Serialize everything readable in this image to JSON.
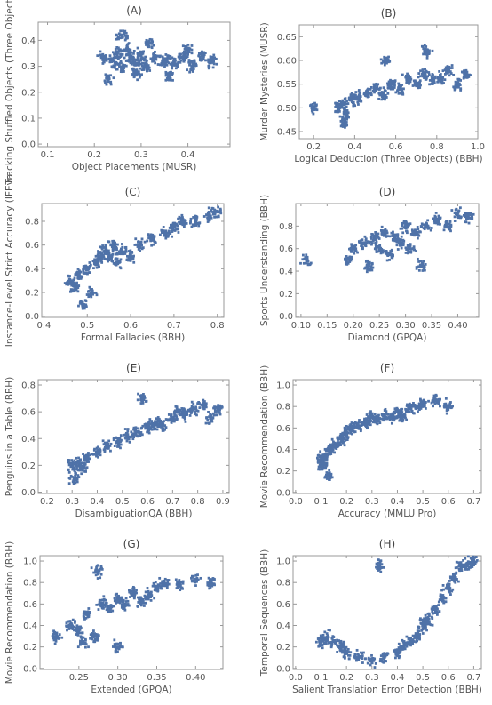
{
  "chart_data": [
    {
      "type": "scatter",
      "title": "(A)",
      "xlabel": "Object Placements (MUSR)",
      "ylabel": "Tracking Shuffled Objects (Three Objects) (",
      "xlim": [
        0.08,
        0.49
      ],
      "ylim": [
        -0.01,
        0.47
      ],
      "xticks": [
        "0.1",
        "0.2",
        "0.3",
        "0.4"
      ],
      "yticks": [
        "0.0",
        "0.1",
        "0.2",
        "0.3",
        "0.4"
      ],
      "series": [
        {
          "x": [
            0.22,
            0.24,
            0.25,
            0.26,
            0.27,
            0.28,
            0.29,
            0.3,
            0.31,
            0.33,
            0.35,
            0.37,
            0.39,
            0.41,
            0.43,
            0.45,
            0.23,
            0.26,
            0.29,
            0.32,
            0.36,
            0.4
          ],
          "y": [
            0.33,
            0.32,
            0.35,
            0.3,
            0.36,
            0.33,
            0.31,
            0.34,
            0.3,
            0.33,
            0.32,
            0.31,
            0.33,
            0.3,
            0.34,
            0.32,
            0.25,
            0.42,
            0.27,
            0.39,
            0.26,
            0.36
          ]
        }
      ]
    },
    {
      "type": "scatter",
      "title": "(B)",
      "xlabel": "Logical Deduction (Three Objects) (BBH)",
      "ylabel": "Murder Mysteries (MUSR)",
      "xlim": [
        0.13,
        1.0
      ],
      "ylim": [
        0.435,
        0.675
      ],
      "xticks": [
        "0.2",
        "0.4",
        "0.6",
        "0.8",
        "1.0"
      ],
      "yticks": [
        "0.45",
        "0.50",
        "0.55",
        "0.60",
        "0.65"
      ],
      "series": [
        {
          "x": [
            0.32,
            0.34,
            0.36,
            0.38,
            0.42,
            0.46,
            0.5,
            0.54,
            0.58,
            0.62,
            0.66,
            0.7,
            0.74,
            0.78,
            0.82,
            0.86,
            0.9,
            0.94,
            0.35,
            0.55,
            0.75,
            0.2
          ],
          "y": [
            0.5,
            0.51,
            0.49,
            0.52,
            0.52,
            0.53,
            0.54,
            0.53,
            0.55,
            0.54,
            0.56,
            0.55,
            0.57,
            0.56,
            0.56,
            0.58,
            0.55,
            0.57,
            0.47,
            0.6,
            0.62,
            0.5
          ]
        }
      ]
    },
    {
      "type": "scatter",
      "title": "(C)",
      "xlabel": "Formal Fallacies (BBH)",
      "ylabel": "Instance-Level Strict Accuracy (IFEva",
      "xlim": [
        0.395,
        0.815
      ],
      "ylim": [
        -0.01,
        0.95
      ],
      "xticks": [
        "0.4",
        "0.5",
        "0.6",
        "0.7",
        "0.8"
      ],
      "yticks": [
        "0.0",
        "0.2",
        "0.4",
        "0.6",
        "0.8"
      ],
      "series": [
        {
          "x": [
            0.46,
            0.47,
            0.48,
            0.5,
            0.52,
            0.53,
            0.54,
            0.55,
            0.56,
            0.57,
            0.58,
            0.6,
            0.62,
            0.65,
            0.68,
            0.7,
            0.72,
            0.75,
            0.78,
            0.8,
            0.49,
            0.51
          ],
          "y": [
            0.3,
            0.25,
            0.35,
            0.4,
            0.45,
            0.5,
            0.55,
            0.5,
            0.6,
            0.45,
            0.55,
            0.5,
            0.6,
            0.65,
            0.7,
            0.75,
            0.8,
            0.8,
            0.85,
            0.88,
            0.1,
            0.2
          ]
        }
      ]
    },
    {
      "type": "scatter",
      "title": "(D)",
      "xlabel": "Diamond (GPQA)",
      "ylabel": "Sports Understanding (BBH)",
      "xlim": [
        0.09,
        0.44
      ],
      "ylim": [
        -0.01,
        1.0
      ],
      "xticks": [
        "0.10",
        "0.15",
        "0.20",
        "0.25",
        "0.30",
        "0.35",
        "0.40"
      ],
      "yticks": [
        "0.0",
        "0.2",
        "0.4",
        "0.6",
        "0.8"
      ],
      "series": [
        {
          "x": [
            0.19,
            0.2,
            0.22,
            0.24,
            0.25,
            0.26,
            0.27,
            0.28,
            0.29,
            0.3,
            0.31,
            0.32,
            0.34,
            0.36,
            0.38,
            0.4,
            0.42,
            0.11,
            0.23,
            0.33
          ],
          "y": [
            0.5,
            0.6,
            0.65,
            0.7,
            0.6,
            0.75,
            0.55,
            0.7,
            0.65,
            0.8,
            0.6,
            0.75,
            0.8,
            0.85,
            0.8,
            0.9,
            0.88,
            0.5,
            0.45,
            0.45
          ]
        }
      ]
    },
    {
      "type": "scatter",
      "title": "(E)",
      "xlabel": "DisambiguationQA (BBH)",
      "ylabel": "Penguins in a Table (BBH)",
      "xlim": [
        0.165,
        0.925
      ],
      "ylim": [
        -0.01,
        0.84
      ],
      "xticks": [
        "0.2",
        "0.3",
        "0.4",
        "0.5",
        "0.6",
        "0.7",
        "0.8",
        "0.9"
      ],
      "yticks": [
        "0.0",
        "0.2",
        "0.4",
        "0.6",
        "0.8"
      ],
      "series": [
        {
          "x": [
            0.3,
            0.32,
            0.34,
            0.36,
            0.4,
            0.44,
            0.48,
            0.52,
            0.56,
            0.6,
            0.62,
            0.64,
            0.66,
            0.7,
            0.72,
            0.75,
            0.78,
            0.82,
            0.85,
            0.88,
            0.31,
            0.58
          ],
          "y": [
            0.2,
            0.22,
            0.18,
            0.25,
            0.3,
            0.35,
            0.38,
            0.42,
            0.45,
            0.48,
            0.5,
            0.52,
            0.5,
            0.55,
            0.6,
            0.58,
            0.62,
            0.65,
            0.55,
            0.62,
            0.1,
            0.7
          ]
        }
      ]
    },
    {
      "type": "scatter",
      "title": "(F)",
      "xlabel": "Accuracy (MMLU Pro)",
      "ylabel": "Movie Recommendation (BBH)",
      "xlim": [
        -0.01,
        0.73
      ],
      "ylim": [
        -0.01,
        1.05
      ],
      "xticks": [
        "0.0",
        "0.1",
        "0.2",
        "0.3",
        "0.4",
        "0.5",
        "0.6",
        "0.7"
      ],
      "yticks": [
        "0.0",
        "0.2",
        "0.4",
        "0.6",
        "0.8",
        "1.0"
      ],
      "series": [
        {
          "x": [
            0.1,
            0.11,
            0.12,
            0.14,
            0.16,
            0.18,
            0.2,
            0.22,
            0.25,
            0.28,
            0.3,
            0.32,
            0.35,
            0.38,
            0.4,
            0.42,
            0.45,
            0.48,
            0.5,
            0.55,
            0.6,
            0.13
          ],
          "y": [
            0.3,
            0.25,
            0.35,
            0.4,
            0.45,
            0.5,
            0.55,
            0.6,
            0.62,
            0.65,
            0.7,
            0.68,
            0.72,
            0.7,
            0.75,
            0.72,
            0.78,
            0.8,
            0.82,
            0.85,
            0.8,
            0.15
          ]
        }
      ]
    },
    {
      "type": "scatter",
      "title": "(G)",
      "xlabel": "Extended (GPQA)",
      "ylabel": "Movie Recommendation (BBH)",
      "xlim": [
        0.2,
        0.435
      ],
      "ylim": [
        -0.01,
        1.05
      ],
      "xticks": [
        "0.25",
        "0.30",
        "0.35",
        "0.40"
      ],
      "yticks": [
        "0.0",
        "0.2",
        "0.4",
        "0.6",
        "0.8",
        "1.0"
      ],
      "series": [
        {
          "x": [
            0.22,
            0.24,
            0.25,
            0.26,
            0.27,
            0.28,
            0.29,
            0.3,
            0.31,
            0.32,
            0.33,
            0.34,
            0.35,
            0.36,
            0.38,
            0.4,
            0.42,
            0.255,
            0.275,
            0.3
          ],
          "y": [
            0.3,
            0.4,
            0.35,
            0.5,
            0.3,
            0.6,
            0.55,
            0.65,
            0.6,
            0.7,
            0.62,
            0.68,
            0.75,
            0.8,
            0.78,
            0.82,
            0.8,
            0.25,
            0.9,
            0.2
          ]
        }
      ]
    },
    {
      "type": "scatter",
      "title": "(H)",
      "xlabel": "Salient Translation Error Detection (BBH)",
      "ylabel": "Temporal Sequences (BBH)",
      "xlim": [
        -0.01,
        0.73
      ],
      "ylim": [
        -0.01,
        1.05
      ],
      "xticks": [
        "0.0",
        "0.1",
        "0.2",
        "0.3",
        "0.4",
        "0.5",
        "0.6",
        "0.7"
      ],
      "yticks": [
        "0.0",
        "0.2",
        "0.4",
        "0.6",
        "0.8",
        "1.0"
      ],
      "series": [
        {
          "x": [
            0.1,
            0.12,
            0.15,
            0.18,
            0.2,
            0.25,
            0.3,
            0.35,
            0.4,
            0.42,
            0.45,
            0.48,
            0.5,
            0.52,
            0.55,
            0.58,
            0.6,
            0.62,
            0.65,
            0.68,
            0.7,
            0.33
          ],
          "y": [
            0.25,
            0.28,
            0.25,
            0.2,
            0.15,
            0.1,
            0.08,
            0.1,
            0.15,
            0.2,
            0.25,
            0.3,
            0.4,
            0.45,
            0.55,
            0.65,
            0.75,
            0.85,
            0.95,
            0.98,
            1.0,
            0.95
          ]
        }
      ]
    }
  ]
}
